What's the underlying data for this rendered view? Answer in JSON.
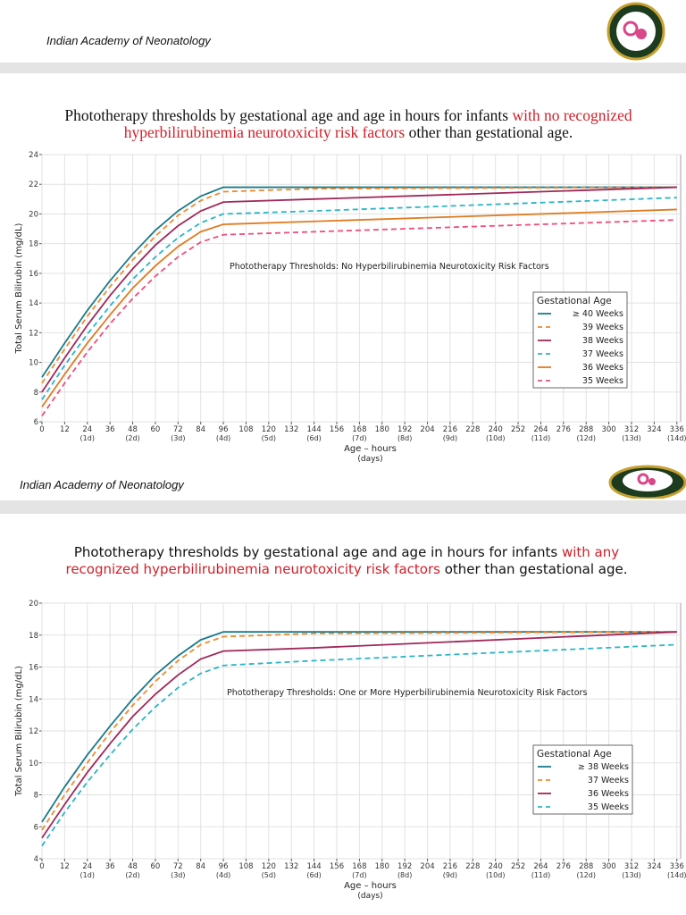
{
  "header": {
    "title": "Indian Academy of Neonatology"
  },
  "footer": {
    "title": "Indian Academy of Neonatology"
  },
  "chart_data": [
    {
      "type": "line",
      "title": [
        {
          "text": "Phototherapy thresholds by gestational age and age in hours for infants ",
          "color": "#111111"
        },
        {
          "text": "with no recognized hyperbilirubinemia neurotoxicity risk factors",
          "color": "#d0202a"
        },
        {
          "text": " other than gestational age.",
          "color": "#111111"
        }
      ],
      "annotation": "Phototherapy Thresholds: No Hyperbilirubinemia Neurotoxicity Risk Factors",
      "y_label": "Total Serum Bilirubin (mg/dL)",
      "x_label": "Age – hours",
      "x_sublabel": "(days)",
      "legend_title": "Gestational Age",
      "legend": "right",
      "grid": true,
      "xlim": [
        0,
        338
      ],
      "ylim": [
        6,
        24
      ],
      "xticks": [
        0,
        12,
        24,
        36,
        48,
        60,
        72,
        84,
        96,
        108,
        120,
        132,
        144,
        156,
        168,
        180,
        192,
        204,
        216,
        228,
        240,
        252,
        264,
        276,
        288,
        300,
        312,
        324,
        336
      ],
      "day_ticks": [
        {
          "value": 24,
          "label": "(1d)"
        },
        {
          "value": 48,
          "label": "(2d)"
        },
        {
          "value": 72,
          "label": "(3d)"
        },
        {
          "value": 96,
          "label": "(4d)"
        },
        {
          "value": 120,
          "label": "(5d)"
        },
        {
          "value": 144,
          "label": "(6d)"
        },
        {
          "value": 168,
          "label": "(7d)"
        },
        {
          "value": 192,
          "label": "(8d)"
        },
        {
          "value": 216,
          "label": "(9d)"
        },
        {
          "value": 240,
          "label": "(10d)"
        },
        {
          "value": 264,
          "label": "(11d)"
        },
        {
          "value": 288,
          "label": "(12d)"
        },
        {
          "value": 312,
          "label": "(13d)"
        },
        {
          "value": 336,
          "label": "(14d)"
        }
      ],
      "yticks": [
        6,
        8,
        10,
        12,
        14,
        16,
        18,
        20,
        22,
        24
      ],
      "x": [
        0,
        12,
        24,
        36,
        48,
        60,
        72,
        84,
        96,
        144,
        336
      ],
      "series": [
        {
          "name": "≥ 40 Weeks",
          "color": "#1a7b8a",
          "dashed": false,
          "values": [
            9.0,
            11.3,
            13.5,
            15.5,
            17.3,
            18.9,
            20.2,
            21.2,
            21.8,
            21.8,
            21.8
          ]
        },
        {
          "name": "39 Weeks",
          "color": "#f08a2c",
          "dashed": true,
          "values": [
            8.6,
            10.9,
            13.1,
            15.1,
            16.9,
            18.5,
            19.9,
            20.9,
            21.5,
            21.7,
            21.8
          ]
        },
        {
          "name": "38 Weeks",
          "color": "#a0285a",
          "dashed": false,
          "values": [
            8.0,
            10.3,
            12.5,
            14.5,
            16.3,
            17.9,
            19.2,
            20.2,
            20.8,
            21.0,
            21.8
          ]
        },
        {
          "name": "37 Weeks",
          "color": "#2bb5c6",
          "dashed": true,
          "values": [
            7.5,
            9.8,
            11.9,
            13.8,
            15.6,
            17.1,
            18.4,
            19.4,
            20.0,
            20.2,
            21.1
          ]
        },
        {
          "name": "36 Weeks",
          "color": "#e07b1f",
          "dashed": false,
          "values": [
            7.0,
            9.2,
            11.3,
            13.2,
            15.0,
            16.5,
            17.8,
            18.8,
            19.3,
            19.5,
            20.3
          ]
        },
        {
          "name": "35 Weeks",
          "color": "#ef4d7d",
          "dashed": true,
          "values": [
            6.4,
            8.6,
            10.7,
            12.6,
            14.3,
            15.8,
            17.1,
            18.1,
            18.6,
            18.8,
            19.6
          ]
        }
      ]
    },
    {
      "type": "line",
      "title": [
        {
          "text": "Phototherapy thresholds by gestational age and age in hours for infants ",
          "color": "#111111"
        },
        {
          "text": "with any recognized hyperbilirubinemia neurotoxicity risk factors",
          "color": "#d0202a"
        },
        {
          "text": " other than gestational age.",
          "color": "#111111"
        }
      ],
      "annotation": "Phototherapy Thresholds: One or More Hyperbilirubinemia Neurotoxicity Risk Factors",
      "y_label": "Total Serum Bilirubin (mg/dL)",
      "x_label": "Age – hours",
      "x_sublabel": "(days)",
      "legend_title": "Gestational Age",
      "legend": "right",
      "grid": true,
      "xlim": [
        0,
        338
      ],
      "ylim": [
        4,
        20
      ],
      "xticks": [
        0,
        12,
        24,
        36,
        48,
        60,
        72,
        84,
        96,
        108,
        120,
        132,
        144,
        156,
        168,
        180,
        192,
        204,
        216,
        228,
        240,
        252,
        264,
        276,
        288,
        300,
        312,
        324,
        336
      ],
      "day_ticks": [
        {
          "value": 24,
          "label": "(1d)"
        },
        {
          "value": 48,
          "label": "(2d)"
        },
        {
          "value": 72,
          "label": "(3d)"
        },
        {
          "value": 96,
          "label": "(4d)"
        },
        {
          "value": 120,
          "label": "(5d)"
        },
        {
          "value": 144,
          "label": "(6d)"
        },
        {
          "value": 168,
          "label": "(7d)"
        },
        {
          "value": 192,
          "label": "(8d)"
        },
        {
          "value": 216,
          "label": "(9d)"
        },
        {
          "value": 240,
          "label": "(10d)"
        },
        {
          "value": 264,
          "label": "(11d)"
        },
        {
          "value": 288,
          "label": "(12d)"
        },
        {
          "value": 312,
          "label": "(13d)"
        },
        {
          "value": 336,
          "label": "(14d)"
        }
      ],
      "yticks": [
        4,
        6,
        8,
        10,
        12,
        14,
        16,
        18,
        20
      ],
      "x": [
        0,
        12,
        24,
        36,
        48,
        60,
        72,
        84,
        96,
        144,
        336
      ],
      "series": [
        {
          "name": "≥ 38 Weeks",
          "color": "#1a7b8a",
          "dashed": false,
          "values": [
            6.3,
            8.5,
            10.5,
            12.3,
            14.0,
            15.5,
            16.7,
            17.7,
            18.2,
            18.2,
            18.2
          ]
        },
        {
          "name": "37 Weeks",
          "color": "#f08a2c",
          "dashed": true,
          "values": [
            5.8,
            8.0,
            10.0,
            11.9,
            13.6,
            15.1,
            16.4,
            17.4,
            17.9,
            18.1,
            18.2
          ]
        },
        {
          "name": "36 Weeks",
          "color": "#a0285a",
          "dashed": false,
          "values": [
            5.3,
            7.4,
            9.4,
            11.2,
            12.9,
            14.3,
            15.5,
            16.5,
            17.0,
            17.2,
            18.2
          ]
        },
        {
          "name": "35 Weeks",
          "color": "#2bb5c6",
          "dashed": true,
          "values": [
            4.8,
            6.9,
            8.8,
            10.5,
            12.1,
            13.5,
            14.7,
            15.6,
            16.1,
            16.4,
            17.4
          ]
        }
      ]
    }
  ]
}
